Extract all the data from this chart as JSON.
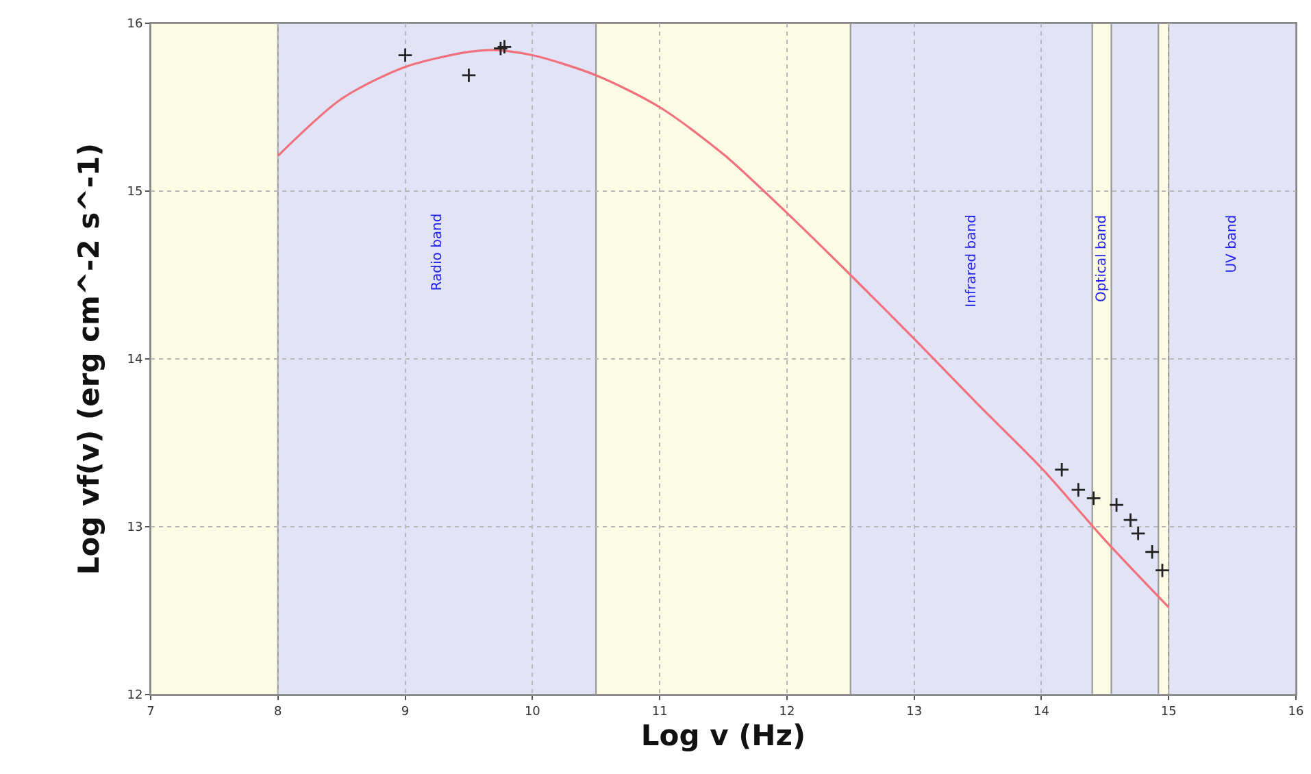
{
  "chart_data": {
    "type": "scatter",
    "xlabel": "Log v (Hz)",
    "ylabel": "Log vf(v) (erg cm^-2 s^-1)",
    "xlim": [
      7,
      16
    ],
    "xticks": [
      7,
      8,
      9,
      10,
      11,
      12,
      13,
      14,
      15,
      16
    ],
    "ylim": [
      12,
      16
    ],
    "yticks": [
      12,
      13,
      14,
      15,
      16
    ],
    "grid": true,
    "series": [
      {
        "type": "line",
        "color": "#f0707c",
        "line_style": "solid",
        "marker": "none",
        "x": [
          8,
          8.5,
          9,
          9.5,
          9.7,
          10,
          10.5,
          11,
          11.5,
          12,
          12.5,
          13,
          13.5,
          14,
          14.5,
          15
        ],
        "values": [
          15.21,
          15.55,
          15.74,
          15.83,
          15.84,
          15.81,
          15.69,
          15.5,
          15.22,
          14.87,
          14.5,
          14.12,
          13.73,
          13.35,
          12.92,
          12.52
        ]
      },
      {
        "type": "scatter",
        "color": "#222222",
        "marker": "cross",
        "x": [
          9.0,
          9.5,
          9.75,
          9.78,
          14.16,
          14.29,
          14.41,
          14.59,
          14.7,
          14.76,
          14.87,
          14.95
        ],
        "values": [
          15.81,
          15.69,
          15.85,
          15.86,
          13.34,
          13.22,
          13.17,
          13.13,
          13.04,
          12.96,
          12.85,
          12.74
        ]
      }
    ],
    "bands": [
      {
        "axis": "x",
        "from": 7,
        "to": 8,
        "color": "#fbfce3"
      },
      {
        "axis": "x",
        "from": 8,
        "to": 10.5,
        "color": "#e3e3f7",
        "label": "Radio band"
      },
      {
        "axis": "x",
        "from": 10.5,
        "to": 12.5,
        "color": "#fbfce3"
      },
      {
        "axis": "x",
        "from": 12.5,
        "to": 14.4,
        "color": "#e3e3f7",
        "label": "Infrared band"
      },
      {
        "axis": "x",
        "from": 14.4,
        "to": 14.55,
        "color": "#fbfce3",
        "label": "Optical band"
      },
      {
        "axis": "x",
        "from": 14.55,
        "to": 14.92,
        "color": "#e3e3f7"
      },
      {
        "axis": "x",
        "from": 14.92,
        "to": 15,
        "color": "#fbfce3"
      },
      {
        "axis": "x",
        "from": 15,
        "to": 16,
        "color": "#e3e3f7",
        "label": "UV band"
      }
    ]
  }
}
